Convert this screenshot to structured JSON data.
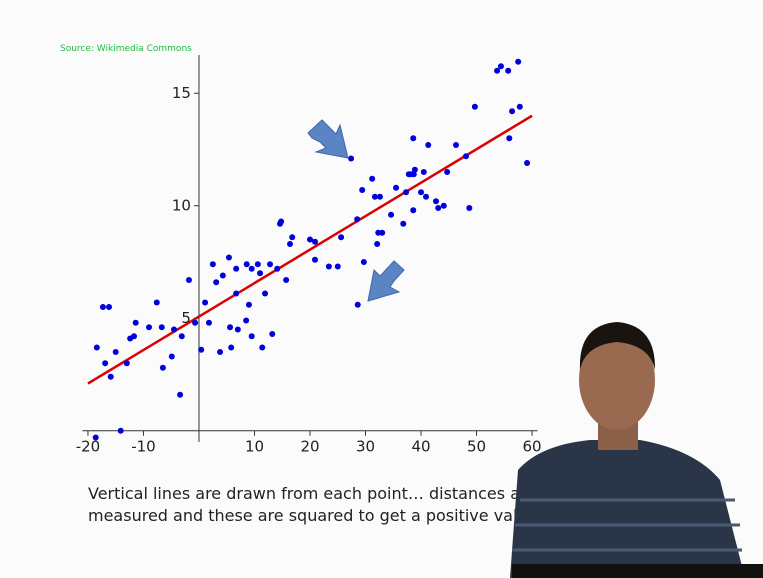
{
  "source": "Source: Wikimedia Commons",
  "caption": [
    "Vertical lines are drawn from each point… distances are",
    "measured and these are squared to get a positive value"
  ],
  "chart_data": {
    "type": "scatter",
    "xlim": [
      -21,
      61
    ],
    "ylim": [
      -0.5,
      16.7
    ],
    "xticks": [
      -20,
      -10,
      10,
      20,
      30,
      40,
      50,
      60
    ],
    "yticks": [
      5,
      10,
      15
    ],
    "series": [
      {
        "color": "#0000dd",
        "x": [
          -18.6,
          -18.4,
          -17.3,
          -16.2,
          -16.9,
          -15.9,
          -15.0,
          -14.1,
          -13.0,
          -12.4,
          -11.7,
          -11.4,
          -9.0,
          -7.6,
          -6.7,
          -6.5,
          -4.9,
          -4.5,
          -3.4,
          -3.1,
          -1.8,
          -0.7,
          0.4,
          1.1,
          1.8,
          2.5,
          3.1,
          3.8,
          4.3,
          5.4,
          5.6,
          5.8,
          6.7,
          6.7,
          7.0,
          8.5,
          8.6,
          9.0,
          9.5,
          9.5,
          10.6,
          11.0,
          11.4,
          11.9,
          12.8,
          13.2,
          14.1,
          14.6,
          14.8,
          15.7,
          16.4,
          16.8,
          20.0,
          20.9,
          20.9,
          23.4,
          25.0,
          25.6,
          27.4,
          28.5,
          28.6,
          29.4,
          29.7,
          31.2,
          31.7,
          32.1,
          32.6,
          33.0,
          32.3,
          34.6,
          35.5,
          36.8,
          37.3,
          37.8,
          38.2,
          38.6,
          38.6,
          38.7,
          38.9,
          40.0,
          40.5,
          40.9,
          41.3,
          42.7,
          43.1,
          44.1,
          44.7,
          46.3,
          48.1,
          48.7,
          49.7,
          53.7,
          54.4,
          55.7,
          55.9,
          56.4,
          57.5,
          57.8,
          59.1
        ],
        "values": [
          -0.3,
          3.7,
          5.5,
          5.5,
          3.0,
          2.4,
          3.5,
          0.0,
          3.0,
          4.1,
          4.2,
          4.8,
          4.6,
          5.7,
          4.6,
          2.8,
          3.3,
          4.5,
          1.6,
          4.2,
          6.7,
          4.8,
          3.6,
          5.7,
          4.8,
          7.4,
          6.6,
          3.5,
          6.9,
          7.7,
          4.6,
          3.7,
          7.2,
          6.1,
          4.5,
          4.9,
          7.4,
          5.6,
          7.2,
          4.2,
          7.4,
          7.0,
          3.7,
          6.1,
          7.4,
          4.3,
          7.2,
          9.2,
          9.3,
          6.7,
          8.3,
          8.6,
          8.5,
          8.4,
          7.6,
          7.3,
          7.3,
          8.6,
          12.1,
          9.4,
          5.6,
          10.7,
          7.5,
          11.2,
          10.4,
          8.3,
          10.4,
          8.8,
          8.8,
          9.6,
          10.8,
          9.2,
          10.6,
          11.4,
          11.4,
          9.8,
          13.0,
          11.4,
          11.6,
          10.6,
          11.5,
          10.4,
          12.7,
          10.2,
          9.9,
          10.0,
          11.5,
          12.7,
          12.2,
          9.9,
          14.4,
          16.0,
          16.2,
          16.0,
          13.0,
          14.2,
          16.4,
          14.4,
          11.9
        ]
      }
    ],
    "fit_line": {
      "color": "#dd0000",
      "x": [
        -20,
        60
      ],
      "values": [
        2.1,
        14.0
      ]
    }
  }
}
